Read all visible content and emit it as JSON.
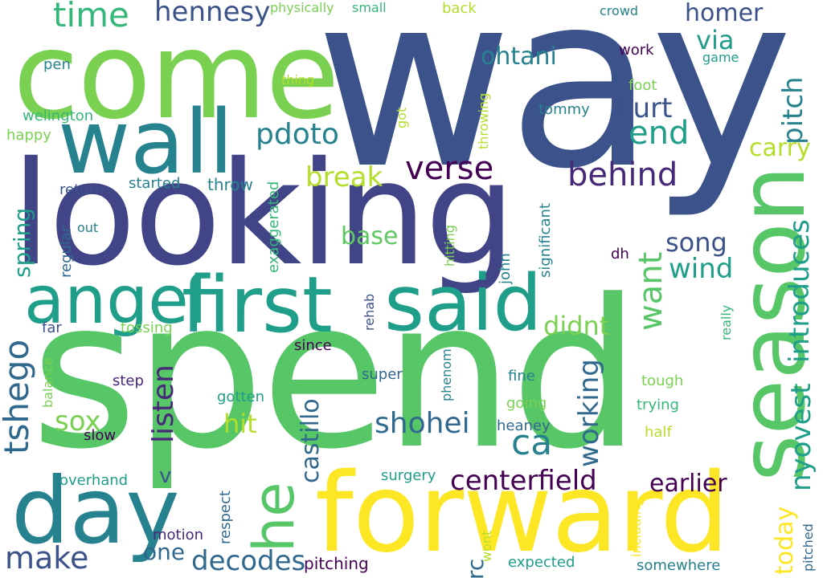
{
  "colors": {
    "background": "#ffffff",
    "navy": "#3b528b",
    "indigo": "#414487",
    "purple": "#440154",
    "violet": "#482878",
    "blue": "#31688e",
    "teal": "#26828e",
    "sea": "#1f9e89",
    "green": "#35b779",
    "leaf": "#5ec962",
    "lime": "#7ad151",
    "olive": "#b5de2b",
    "yellow": "#fde725"
  },
  "words": [
    "way",
    "spend",
    "looking",
    "come",
    "forward",
    "season",
    "said",
    "first",
    "angel",
    "day",
    "wall",
    "he",
    "time",
    "hennesy",
    "homer",
    "via",
    "ohtani",
    "pitch",
    "end",
    "hurt",
    "pdoto",
    "verse",
    "behind",
    "carry",
    "introduces",
    "break",
    "song",
    "wind",
    "base",
    "want",
    "didnt",
    "nyovest",
    "tshego",
    "listen",
    "sox",
    "hit",
    "shohei",
    "ca",
    "working",
    "castillo",
    "centerfield",
    "earlier",
    "make",
    "one",
    "decodes",
    "today",
    "spring",
    "return",
    "started",
    "throw",
    "exaggerated",
    "significant",
    "john",
    "dh",
    "regular",
    "out",
    "far",
    "tossing",
    "rehab",
    "since",
    "balance",
    "step",
    "super",
    "fine",
    "tough",
    "gotten",
    "going",
    "trying",
    "heaney",
    "slow",
    "half",
    "overhand",
    "surgery",
    "v",
    "rc",
    "motion",
    "respect",
    "pitching",
    "wont",
    "expected",
    "somewhere",
    "pitched",
    "including",
    "phenom",
    "hitting",
    "really",
    "physically",
    "small",
    "back",
    "crowd",
    "work",
    "game",
    "pen",
    "thing",
    "foot",
    "tommy",
    "welington",
    "happy",
    "got",
    "throwing"
  ]
}
